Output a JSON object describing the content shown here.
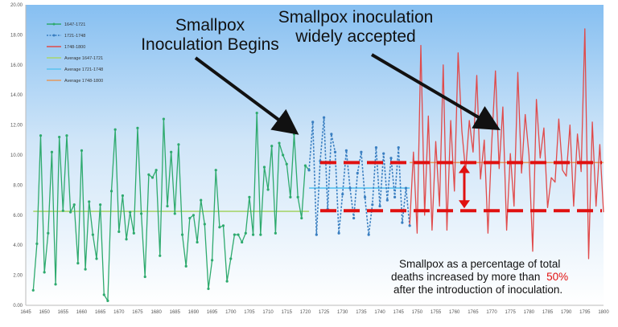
{
  "chart_data": {
    "type": "line",
    "title": "",
    "xlabel": "",
    "ylabel": "",
    "xlim": [
      1645,
      1800
    ],
    "ylim": [
      0,
      20
    ],
    "x_ticks": [
      "1645",
      "1650",
      "1655",
      "1660",
      "1665",
      "1670",
      "1675",
      "1680",
      "1685",
      "1690",
      "1695",
      "1700",
      "1705",
      "1710",
      "1715",
      "1720",
      "1725",
      "1730",
      "1735",
      "1740",
      "1745",
      "1750",
      "1755",
      "1760",
      "1765",
      "1770",
      "1775",
      "1780",
      "1785",
      "1790",
      "1795",
      "1800"
    ],
    "y_ticks": [
      "0.00",
      "2.00",
      "4.00",
      "6.00",
      "8.00",
      "10.00",
      "12.00",
      "14.00",
      "16.00",
      "18.00",
      "20.00"
    ],
    "grid": false,
    "legend_position": "top-left",
    "series": [
      {
        "name": "1647-1721",
        "color": "#2eaa6e",
        "style": "solid-markers",
        "x": [
          1647,
          1648,
          1649,
          1650,
          1651,
          1652,
          1653,
          1654,
          1655,
          1656,
          1657,
          1658,
          1659,
          1660,
          1661,
          1662,
          1663,
          1664,
          1665,
          1666,
          1667,
          1668,
          1669,
          1670,
          1671,
          1672,
          1673,
          1674,
          1675,
          1676,
          1677,
          1678,
          1679,
          1680,
          1681,
          1682,
          1683,
          1684,
          1685,
          1686,
          1687,
          1688,
          1689,
          1690,
          1691,
          1692,
          1693,
          1694,
          1695,
          1696,
          1697,
          1698,
          1699,
          1700,
          1701,
          1702,
          1703,
          1704,
          1705,
          1706,
          1707,
          1708,
          1709,
          1710,
          1711,
          1712,
          1713,
          1714,
          1715,
          1716,
          1717,
          1718,
          1719,
          1720,
          1721
        ],
        "values": [
          1.0,
          4.1,
          11.3,
          2.2,
          4.8,
          10.2,
          1.4,
          11.2,
          6.3,
          11.3,
          6.2,
          6.7,
          2.8,
          10.3,
          2.4,
          6.9,
          4.7,
          3.1,
          6.7,
          0.7,
          0.3,
          7.6,
          11.7,
          4.9,
          7.3,
          4.4,
          6.2,
          4.8,
          11.8,
          6.1,
          1.9,
          8.7,
          8.5,
          9.0,
          3.3,
          12.4,
          6.6,
          10.2,
          6.1,
          10.7,
          4.7,
          2.6,
          5.8,
          6.0,
          4.2,
          7.0,
          5.4,
          1.1,
          3.0,
          9.0,
          5.2,
          5.3,
          1.6,
          3.1,
          4.7,
          4.7,
          4.2,
          4.8,
          7.2,
          4.7,
          12.8,
          4.7,
          9.2,
          7.7,
          10.6,
          4.8,
          10.8,
          10.0,
          9.4,
          7.2,
          11.4,
          7.2,
          5.8,
          9.3,
          9.0
        ]
      },
      {
        "name": "1721-1748",
        "color": "#3a7fc1",
        "style": "dotted-markers",
        "x": [
          1721,
          1722,
          1723,
          1724,
          1725,
          1726,
          1727,
          1728,
          1729,
          1730,
          1731,
          1732,
          1733,
          1734,
          1735,
          1736,
          1737,
          1738,
          1739,
          1740,
          1741,
          1742,
          1743,
          1744,
          1745,
          1746,
          1747,
          1748
        ],
        "values": [
          9.0,
          12.2,
          4.7,
          9.6,
          12.5,
          6.4,
          11.4,
          10.2,
          4.8,
          7.4,
          10.3,
          7.8,
          5.8,
          8.8,
          10.2,
          7.2,
          4.7,
          6.7,
          10.5,
          6.6,
          10.1,
          7.0,
          9.8,
          7.2,
          10.5,
          5.5,
          7.8,
          5.3
        ]
      },
      {
        "name": "1748-1800",
        "color": "#e04a4a",
        "style": "solid",
        "x": [
          1748,
          1749,
          1750,
          1751,
          1752,
          1753,
          1754,
          1755,
          1756,
          1757,
          1758,
          1759,
          1760,
          1761,
          1762,
          1763,
          1764,
          1765,
          1766,
          1767,
          1768,
          1769,
          1770,
          1771,
          1772,
          1773,
          1774,
          1775,
          1776,
          1777,
          1778,
          1779,
          1780,
          1781,
          1782,
          1783,
          1784,
          1785,
          1786,
          1787,
          1788,
          1789,
          1790,
          1791,
          1792,
          1793,
          1794,
          1795,
          1796,
          1797,
          1798,
          1799,
          1800
        ],
        "values": [
          5.3,
          10.2,
          4.8,
          17.3,
          6.0,
          12.6,
          5.0,
          10.9,
          6.6,
          16.0,
          5.0,
          12.3,
          7.6,
          16.8,
          11.6,
          8.9,
          12.3,
          10.2,
          15.3,
          8.4,
          11.0,
          4.8,
          10.7,
          15.6,
          9.1,
          13.2,
          5.0,
          10.1,
          6.6,
          15.5,
          8.8,
          12.7,
          10.0,
          3.6,
          13.7,
          9.8,
          11.8,
          6.5,
          8.5,
          8.2,
          12.4,
          9.0,
          8.6,
          12.0,
          6.6,
          11.4,
          8.9,
          18.4,
          3.1,
          12.2,
          6.6,
          10.7,
          6.2
        ]
      },
      {
        "name": "Average 1647-1721",
        "color": "#a8d66e",
        "style": "flat",
        "x": [
          1647,
          1721
        ],
        "values": [
          6.25,
          6.25
        ]
      },
      {
        "name": "Average 1721-1748",
        "color": "#58c3f0",
        "style": "flat",
        "x": [
          1721,
          1748
        ],
        "values": [
          7.8,
          7.8
        ]
      },
      {
        "name": "Average 1748-1800",
        "color": "#e39a5e",
        "style": "flat",
        "x": [
          1748,
          1800
        ],
        "values": [
          9.5,
          9.5
        ]
      }
    ],
    "annotations": {
      "callout_1": [
        "Smallpox",
        "Inoculation Begins"
      ],
      "callout_2": [
        "Smallpox  inoculation",
        "widely accepted"
      ],
      "note": [
        "Smallpox as a percentage of total",
        "deaths increased by more than",
        "50%",
        "after the introduction of inoculation."
      ],
      "highlight_color": "#e01010",
      "dashed_levels": [
        6.3,
        9.5
      ]
    }
  }
}
